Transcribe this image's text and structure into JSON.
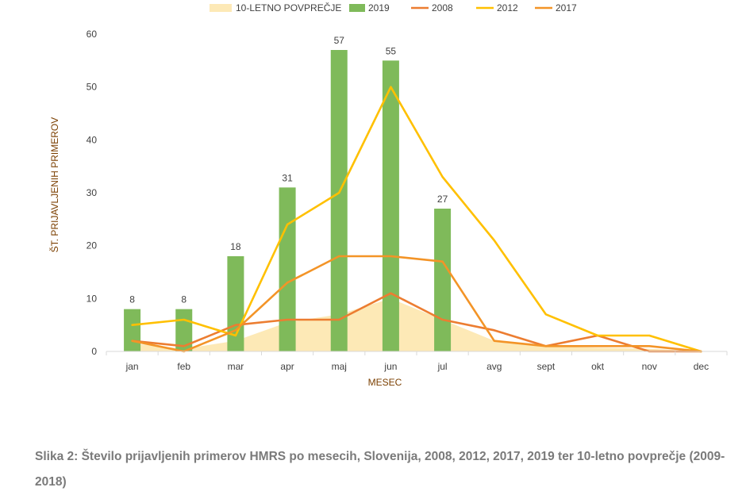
{
  "chart_data": {
    "type": "bar",
    "categories": [
      "jan",
      "feb",
      "mar",
      "apr",
      "maj",
      "jun",
      "jul",
      "avg",
      "sept",
      "okt",
      "nov",
      "dec"
    ],
    "series": [
      {
        "name": "10-LETNO POVPREČJE",
        "kind": "area",
        "color": "#fde9b6",
        "values": [
          1.5,
          0.5,
          2,
          5.5,
          7,
          10,
          6,
          2,
          1,
          0.7,
          0.5,
          0
        ]
      },
      {
        "name": "2019",
        "kind": "bar",
        "color": "#7fba5a",
        "values": [
          8,
          8,
          18,
          31,
          57,
          55,
          27,
          null,
          null,
          null,
          null,
          null
        ]
      },
      {
        "name": "2008",
        "kind": "line",
        "color": "#ec7d31",
        "values": [
          2,
          1,
          5,
          6,
          6,
          11,
          6,
          4,
          1,
          3,
          0,
          0
        ]
      },
      {
        "name": "2012",
        "kind": "line",
        "color": "#ffc000",
        "values": [
          5,
          6,
          3,
          24,
          30,
          50,
          33,
          21,
          7,
          3,
          3,
          0
        ]
      },
      {
        "name": "2017",
        "kind": "line",
        "color": "#f39427",
        "values": [
          2,
          0,
          4,
          13,
          18,
          18,
          17,
          2,
          1,
          1,
          1,
          0
        ]
      }
    ],
    "data_labels": [
      "8",
      "8",
      "18",
      "31",
      "57",
      "55",
      "27"
    ],
    "yticks": [
      "0",
      "10",
      "20",
      "30",
      "40",
      "50",
      "60"
    ],
    "ylim": [
      0,
      60
    ],
    "xlabel": "MESEC",
    "ylabel": "ŠT. PRIJAVLJENIH PRIMEROV",
    "legend_position": "top"
  },
  "caption": {
    "text": "Slika 2: Število prijavljenih primerov HMRS po mesecih, Slovenija, 2008, 2012, 2017, 2019 ter 10-letno povprečje (2009-2018)"
  }
}
